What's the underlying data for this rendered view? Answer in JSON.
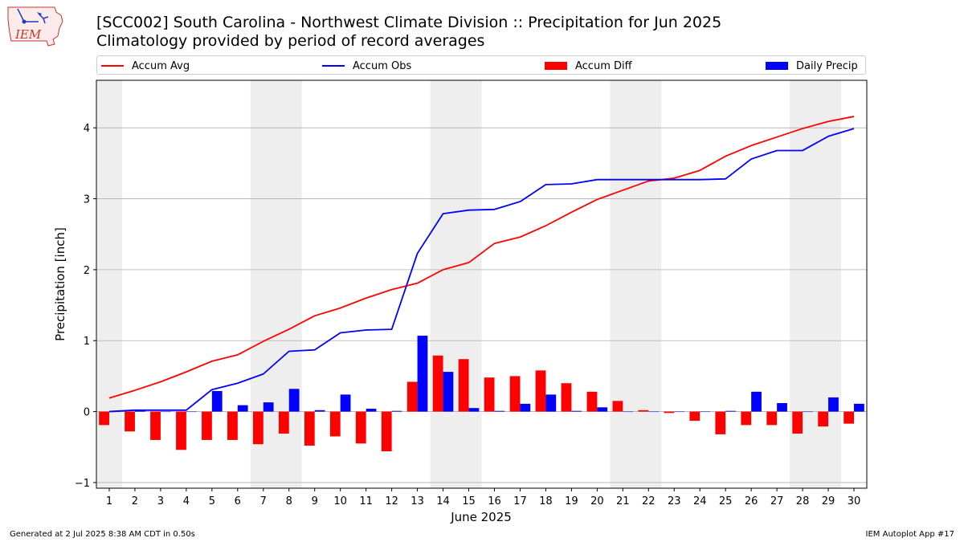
{
  "header": {
    "logo_text": "IEM",
    "title_line1": "[SCC002] South Carolina - Northwest Climate Division :: Precipitation for Jun 2025",
    "title_line2": "Climatology provided by period of record averages"
  },
  "footer": {
    "generated": "Generated at 2 Jul 2025 8:38 AM CDT in 0.50s",
    "app": "IEM Autoplot App #17"
  },
  "colors": {
    "accum_avg": "#ff0000",
    "accum_obs": "#0000ff",
    "accum_diff": "#ff0000",
    "daily_precip": "#0000ff",
    "weekend_shade": "#eeeeee",
    "grid": "#b0b0b0"
  },
  "chart_data": {
    "type": "bar",
    "xlabel": "June 2025",
    "ylabel": "Precipitation [inch]",
    "ylim": [
      -1.08,
      4.67
    ],
    "xlim": [
      0.5,
      30.5
    ],
    "yticks": [
      -1,
      0,
      1,
      2,
      3,
      4
    ],
    "legend": {
      "position": "top",
      "entries": [
        {
          "key": "accum_avg",
          "label": "Accum Avg",
          "kind": "line"
        },
        {
          "key": "accum_obs",
          "label": "Accum Obs",
          "kind": "line"
        },
        {
          "key": "accum_diff",
          "label": "Accum Diff",
          "kind": "bar"
        },
        {
          "key": "daily_precip",
          "label": "Daily Precip",
          "kind": "bar"
        }
      ]
    },
    "grid": "horizontal",
    "weekend_days": [
      1,
      7,
      8,
      14,
      15,
      21,
      22,
      28,
      29
    ],
    "days": [
      1,
      2,
      3,
      4,
      5,
      6,
      7,
      8,
      9,
      10,
      11,
      12,
      13,
      14,
      15,
      16,
      17,
      18,
      19,
      20,
      21,
      22,
      23,
      24,
      25,
      26,
      27,
      28,
      29,
      30
    ],
    "series": [
      {
        "name": "Accum Avg",
        "type": "line",
        "values": [
          0.19,
          0.3,
          0.42,
          0.56,
          0.71,
          0.8,
          0.99,
          1.16,
          1.35,
          1.46,
          1.6,
          1.72,
          1.81,
          2.0,
          2.1,
          2.37,
          2.46,
          2.62,
          2.81,
          2.99,
          3.12,
          3.25,
          3.29,
          3.4,
          3.6,
          3.75,
          3.87,
          3.99,
          4.09,
          4.16
        ]
      },
      {
        "name": "Accum Obs",
        "type": "line",
        "values": [
          0.0,
          0.02,
          0.02,
          0.02,
          0.31,
          0.4,
          0.53,
          0.85,
          0.87,
          1.11,
          1.15,
          1.16,
          2.23,
          2.79,
          2.84,
          2.85,
          2.96,
          3.2,
          3.21,
          3.27,
          3.27,
          3.27,
          3.27,
          3.27,
          3.28,
          3.56,
          3.68,
          3.68,
          3.88,
          3.99
        ]
      },
      {
        "name": "Accum Diff",
        "type": "bar",
        "values": [
          -0.19,
          -0.28,
          -0.4,
          -0.54,
          -0.4,
          -0.4,
          -0.46,
          -0.31,
          -0.48,
          -0.35,
          -0.45,
          -0.56,
          0.42,
          0.79,
          0.74,
          0.48,
          0.5,
          0.58,
          0.4,
          0.28,
          0.15,
          0.02,
          -0.02,
          -0.13,
          -0.32,
          -0.19,
          -0.19,
          -0.31,
          -0.21,
          -0.17
        ]
      },
      {
        "name": "Daily Precip",
        "type": "bar",
        "values": [
          0.0,
          0.02,
          0.0,
          0.0,
          0.29,
          0.09,
          0.13,
          0.32,
          0.02,
          0.24,
          0.04,
          0.01,
          1.07,
          0.56,
          0.05,
          0.01,
          0.11,
          0.24,
          0.01,
          0.06,
          0.0,
          0.0,
          0.0,
          0.0,
          0.01,
          0.28,
          0.12,
          0.0,
          0.2,
          0.11
        ]
      }
    ]
  }
}
